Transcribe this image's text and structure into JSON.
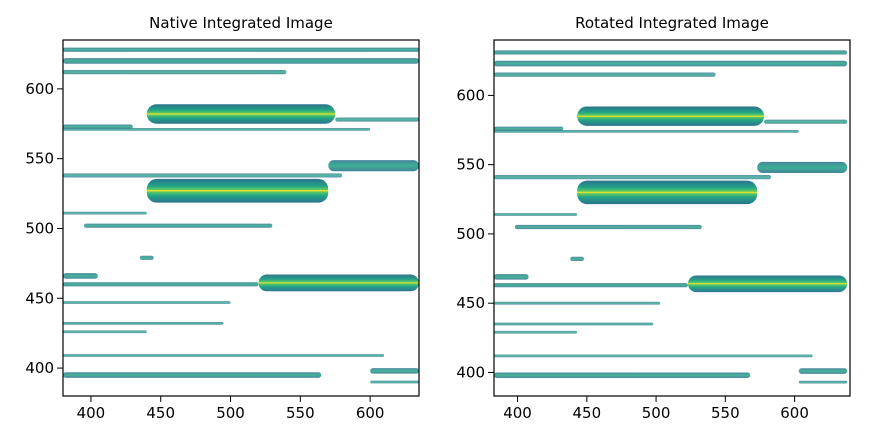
{
  "panels": [
    {
      "title": "Native Integrated Image",
      "xlim": [
        380,
        635
      ],
      "ylim": [
        380,
        635
      ],
      "xticks": [
        400,
        450,
        500,
        550,
        600
      ],
      "yticks": [
        400,
        450,
        500,
        550,
        600
      ],
      "shift": [
        0,
        0
      ]
    },
    {
      "title": "Rotated Integrated Image",
      "xlim": [
        383,
        640
      ],
      "ylim": [
        383,
        640
      ],
      "xticks": [
        400,
        450,
        500,
        550,
        600
      ],
      "yticks": [
        400,
        450,
        500,
        550,
        600
      ],
      "shift": [
        3,
        3
      ]
    }
  ],
  "colors": {
    "low": "#2c728e",
    "mid": "#21a585",
    "high": "#5ec962",
    "peak": "#fde725"
  },
  "bands": [
    {
      "x": [
        380,
        635
      ],
      "y": 628,
      "h": 3,
      "i": 0.55
    },
    {
      "x": [
        380,
        635
      ],
      "y": 620,
      "h": 4,
      "i": 0.6
    },
    {
      "x": [
        380,
        540
      ],
      "y": 612,
      "h": 3,
      "i": 0.45
    },
    {
      "x": [
        440,
        575
      ],
      "y": 582,
      "h": 14,
      "i": 1.0
    },
    {
      "x": [
        380,
        430
      ],
      "y": 573,
      "h": 3,
      "i": 0.55
    },
    {
      "x": [
        380,
        600
      ],
      "y": 571,
      "h": 2,
      "i": 0.4
    },
    {
      "x": [
        575,
        635
      ],
      "y": 578,
      "h": 3,
      "i": 0.45
    },
    {
      "x": [
        570,
        635
      ],
      "y": 545,
      "h": 8,
      "i": 0.7
    },
    {
      "x": [
        440,
        570
      ],
      "y": 527,
      "h": 17,
      "i": 1.0
    },
    {
      "x": [
        380,
        580
      ],
      "y": 538,
      "h": 3,
      "i": 0.4
    },
    {
      "x": [
        380,
        440
      ],
      "y": 511,
      "h": 2,
      "i": 0.4
    },
    {
      "x": [
        395,
        530
      ],
      "y": 502,
      "h": 3,
      "i": 0.55
    },
    {
      "x": [
        435,
        445
      ],
      "y": 479,
      "h": 3,
      "i": 0.55
    },
    {
      "x": [
        520,
        635
      ],
      "y": 461,
      "h": 12,
      "i": 0.95
    },
    {
      "x": [
        380,
        520
      ],
      "y": 460,
      "h": 3,
      "i": 0.6
    },
    {
      "x": [
        380,
        405
      ],
      "y": 466,
      "h": 4,
      "i": 0.6
    },
    {
      "x": [
        380,
        500
      ],
      "y": 447,
      "h": 2,
      "i": 0.4
    },
    {
      "x": [
        380,
        495
      ],
      "y": 432,
      "h": 2,
      "i": 0.45
    },
    {
      "x": [
        380,
        440
      ],
      "y": 426,
      "h": 2,
      "i": 0.4
    },
    {
      "x": [
        380,
        610
      ],
      "y": 409,
      "h": 2,
      "i": 0.4
    },
    {
      "x": [
        380,
        565
      ],
      "y": 395,
      "h": 4,
      "i": 0.6
    },
    {
      "x": [
        600,
        635
      ],
      "y": 398,
      "h": 4,
      "i": 0.6
    },
    {
      "x": [
        600,
        635
      ],
      "y": 390,
      "h": 2,
      "i": 0.45
    }
  ]
}
